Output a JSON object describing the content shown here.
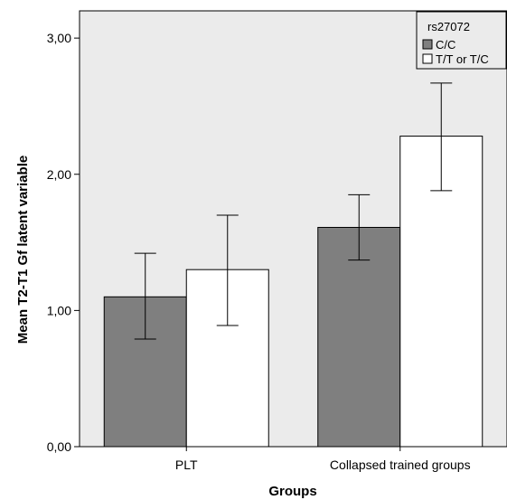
{
  "chart_data": {
    "type": "bar",
    "title": "",
    "xlabel": "Groups",
    "ylabel": "Mean T2-T1 Gf latent variable",
    "categories": [
      "PLT",
      "Collapsed trained groups"
    ],
    "ylim": [
      0,
      3.2
    ],
    "yticks": [
      0,
      1,
      2,
      3
    ],
    "ytick_labels": [
      "0,00",
      "1,00",
      "2,00",
      "3,00"
    ],
    "legend": {
      "title": "rs27072",
      "placement": "top-right"
    },
    "series": [
      {
        "name": "C/C",
        "color": "#7f7f7f",
        "values": [
          1.1,
          1.61
        ],
        "error_low": [
          0.79,
          1.37
        ],
        "error_high": [
          1.42,
          1.85
        ]
      },
      {
        "name": "T/T or T/C",
        "color": "#ffffff",
        "values": [
          1.3,
          2.28
        ],
        "error_low": [
          0.89,
          1.88
        ],
        "error_high": [
          1.7,
          2.67
        ]
      }
    ],
    "plot_background": "#ebebeb",
    "grid": false
  }
}
